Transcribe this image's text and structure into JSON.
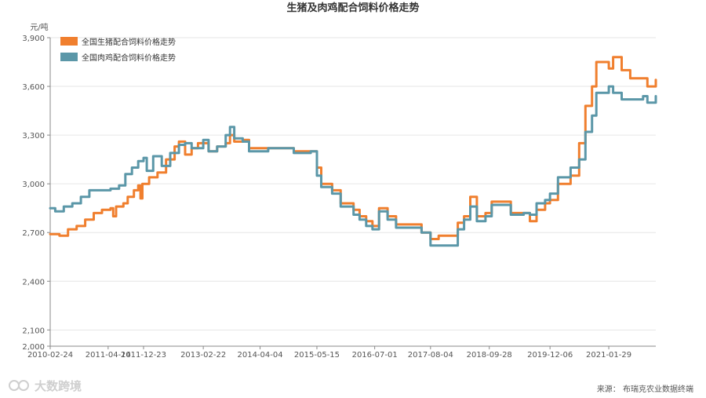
{
  "chart_data": {
    "type": "line",
    "title": "生猪及肉鸡配合饲料价格走势",
    "ylabel": "元/吨",
    "ylim": [
      2000,
      3900
    ],
    "yticks": [
      {
        "value": 2000,
        "label": "2,000"
      },
      {
        "value": 2100,
        "label": "2,100"
      },
      {
        "value": 2400,
        "label": "2,400"
      },
      {
        "value": 2700,
        "label": "2,700"
      },
      {
        "value": 3000,
        "label": "3,000"
      },
      {
        "value": 3300,
        "label": "3,300"
      },
      {
        "value": 3600,
        "label": "3,600"
      },
      {
        "value": 3900,
        "label": "3,900"
      }
    ],
    "xlim": [
      "2010-02-24",
      "2021-12-31"
    ],
    "xticks": [
      "2010-02-24",
      "2011-04-14",
      "2011-12-23",
      "2013-02-22",
      "2014-04-04",
      "2015-05-15",
      "2016-07-01",
      "2017-08-04",
      "2018-09-28",
      "2019-12-06",
      "2021-01-29"
    ],
    "grid": true,
    "legend_position": "top-left",
    "series": [
      {
        "name": "全国生猪配合饲料价格走势",
        "color": "#f07f2e",
        "points": [
          [
            "2010-02-24",
            2690
          ],
          [
            "2010-05-01",
            2680
          ],
          [
            "2010-07-01",
            2720
          ],
          [
            "2010-09-01",
            2740
          ],
          [
            "2010-11-01",
            2780
          ],
          [
            "2011-01-01",
            2820
          ],
          [
            "2011-03-01",
            2840
          ],
          [
            "2011-05-01",
            2850
          ],
          [
            "2011-05-20",
            2800
          ],
          [
            "2011-06-10",
            2860
          ],
          [
            "2011-08-01",
            2880
          ],
          [
            "2011-09-01",
            2920
          ],
          [
            "2011-10-15",
            2960
          ],
          [
            "2011-11-15",
            2990
          ],
          [
            "2011-12-01",
            2910
          ],
          [
            "2011-12-15",
            3000
          ],
          [
            "2012-02-01",
            3040
          ],
          [
            "2012-04-01",
            3070
          ],
          [
            "2012-06-01",
            3150
          ],
          [
            "2012-08-01",
            3230
          ],
          [
            "2012-09-01",
            3260
          ],
          [
            "2012-10-15",
            3180
          ],
          [
            "2012-12-01",
            3220
          ],
          [
            "2013-01-15",
            3250
          ],
          [
            "2013-04-01",
            3200
          ],
          [
            "2013-06-01",
            3230
          ],
          [
            "2013-08-01",
            3250
          ],
          [
            "2013-09-01",
            3300
          ],
          [
            "2013-10-01",
            3260
          ],
          [
            "2013-12-01",
            3270
          ],
          [
            "2014-01-15",
            3220
          ],
          [
            "2014-06-01",
            3220
          ],
          [
            "2014-10-01",
            3220
          ],
          [
            "2014-12-01",
            3200
          ],
          [
            "2015-04-01",
            3200
          ],
          [
            "2015-05-15",
            3100
          ],
          [
            "2015-06-15",
            3000
          ],
          [
            "2015-09-01",
            2960
          ],
          [
            "2015-11-01",
            2880
          ],
          [
            "2016-02-01",
            2840
          ],
          [
            "2016-03-15",
            2800
          ],
          [
            "2016-05-01",
            2770
          ],
          [
            "2016-06-15",
            2740
          ],
          [
            "2016-08-01",
            2850
          ],
          [
            "2016-10-01",
            2800
          ],
          [
            "2016-12-01",
            2750
          ],
          [
            "2017-03-01",
            2750
          ],
          [
            "2017-06-01",
            2700
          ],
          [
            "2017-08-04",
            2660
          ],
          [
            "2017-10-01",
            2680
          ],
          [
            "2018-01-01",
            2680
          ],
          [
            "2018-02-15",
            2760
          ],
          [
            "2018-04-01",
            2800
          ],
          [
            "2018-05-15",
            2920
          ],
          [
            "2018-07-01",
            2800
          ],
          [
            "2018-09-01",
            2820
          ],
          [
            "2018-10-15",
            2890
          ],
          [
            "2019-02-01",
            2890
          ],
          [
            "2019-03-01",
            2820
          ],
          [
            "2019-06-01",
            2820
          ],
          [
            "2019-07-15",
            2770
          ],
          [
            "2019-09-01",
            2840
          ],
          [
            "2019-11-01",
            2880
          ],
          [
            "2019-12-06",
            2900
          ],
          [
            "2020-02-01",
            3000
          ],
          [
            "2020-05-01",
            3050
          ],
          [
            "2020-07-01",
            3250
          ],
          [
            "2020-08-15",
            3480
          ],
          [
            "2020-10-01",
            3600
          ],
          [
            "2020-11-01",
            3750
          ],
          [
            "2021-01-29",
            3710
          ],
          [
            "2021-03-01",
            3780
          ],
          [
            "2021-05-01",
            3700
          ],
          [
            "2021-07-01",
            3650
          ],
          [
            "2021-10-01",
            3650
          ],
          [
            "2021-11-01",
            3600
          ],
          [
            "2021-12-31",
            3640
          ]
        ]
      },
      {
        "name": "全国肉鸡配合饲料价格走势",
        "color": "#5b97a8",
        "points": [
          [
            "2010-02-24",
            2850
          ],
          [
            "2010-04-01",
            2830
          ],
          [
            "2010-06-01",
            2860
          ],
          [
            "2010-08-01",
            2880
          ],
          [
            "2010-10-01",
            2920
          ],
          [
            "2010-12-01",
            2960
          ],
          [
            "2011-03-01",
            2960
          ],
          [
            "2011-05-01",
            2970
          ],
          [
            "2011-07-01",
            2990
          ],
          [
            "2011-08-15",
            3060
          ],
          [
            "2011-10-01",
            3100
          ],
          [
            "2011-11-15",
            3140
          ],
          [
            "2011-12-23",
            3160
          ],
          [
            "2012-01-15",
            3080
          ],
          [
            "2012-03-01",
            3170
          ],
          [
            "2012-05-01",
            3110
          ],
          [
            "2012-07-01",
            3190
          ],
          [
            "2012-09-01",
            3240
          ],
          [
            "2012-10-15",
            3250
          ],
          [
            "2012-12-01",
            3220
          ],
          [
            "2013-02-22",
            3270
          ],
          [
            "2013-04-01",
            3200
          ],
          [
            "2013-06-01",
            3230
          ],
          [
            "2013-08-01",
            3300
          ],
          [
            "2013-09-01",
            3350
          ],
          [
            "2013-10-01",
            3280
          ],
          [
            "2013-12-01",
            3260
          ],
          [
            "2014-01-15",
            3200
          ],
          [
            "2014-06-01",
            3220
          ],
          [
            "2014-10-01",
            3220
          ],
          [
            "2014-12-01",
            3190
          ],
          [
            "2015-04-01",
            3200
          ],
          [
            "2015-05-15",
            3050
          ],
          [
            "2015-06-15",
            2980
          ],
          [
            "2015-09-01",
            2940
          ],
          [
            "2015-11-01",
            2860
          ],
          [
            "2016-02-01",
            2810
          ],
          [
            "2016-03-15",
            2780
          ],
          [
            "2016-05-01",
            2740
          ],
          [
            "2016-06-15",
            2720
          ],
          [
            "2016-08-01",
            2830
          ],
          [
            "2016-10-01",
            2780
          ],
          [
            "2016-12-01",
            2730
          ],
          [
            "2017-03-01",
            2730
          ],
          [
            "2017-06-01",
            2700
          ],
          [
            "2017-08-04",
            2620
          ],
          [
            "2017-10-01",
            2620
          ],
          [
            "2018-01-01",
            2620
          ],
          [
            "2018-02-15",
            2720
          ],
          [
            "2018-04-01",
            2780
          ],
          [
            "2018-05-15",
            2860
          ],
          [
            "2018-07-01",
            2770
          ],
          [
            "2018-09-01",
            2800
          ],
          [
            "2018-10-15",
            2870
          ],
          [
            "2019-02-01",
            2870
          ],
          [
            "2019-03-01",
            2810
          ],
          [
            "2019-06-01",
            2820
          ],
          [
            "2019-07-15",
            2810
          ],
          [
            "2019-09-01",
            2880
          ],
          [
            "2019-11-01",
            2900
          ],
          [
            "2019-12-06",
            2940
          ],
          [
            "2020-02-01",
            3040
          ],
          [
            "2020-05-01",
            3100
          ],
          [
            "2020-07-01",
            3150
          ],
          [
            "2020-08-15",
            3320
          ],
          [
            "2020-10-01",
            3420
          ],
          [
            "2020-11-01",
            3560
          ],
          [
            "2021-01-29",
            3600
          ],
          [
            "2021-03-01",
            3560
          ],
          [
            "2021-05-01",
            3520
          ],
          [
            "2021-07-01",
            3520
          ],
          [
            "2021-10-01",
            3540
          ],
          [
            "2021-11-01",
            3500
          ],
          [
            "2021-12-31",
            3540
          ]
        ]
      }
    ]
  },
  "source_text": "来源：  布瑞克农业数据终端",
  "logo_text": "大数跨境"
}
